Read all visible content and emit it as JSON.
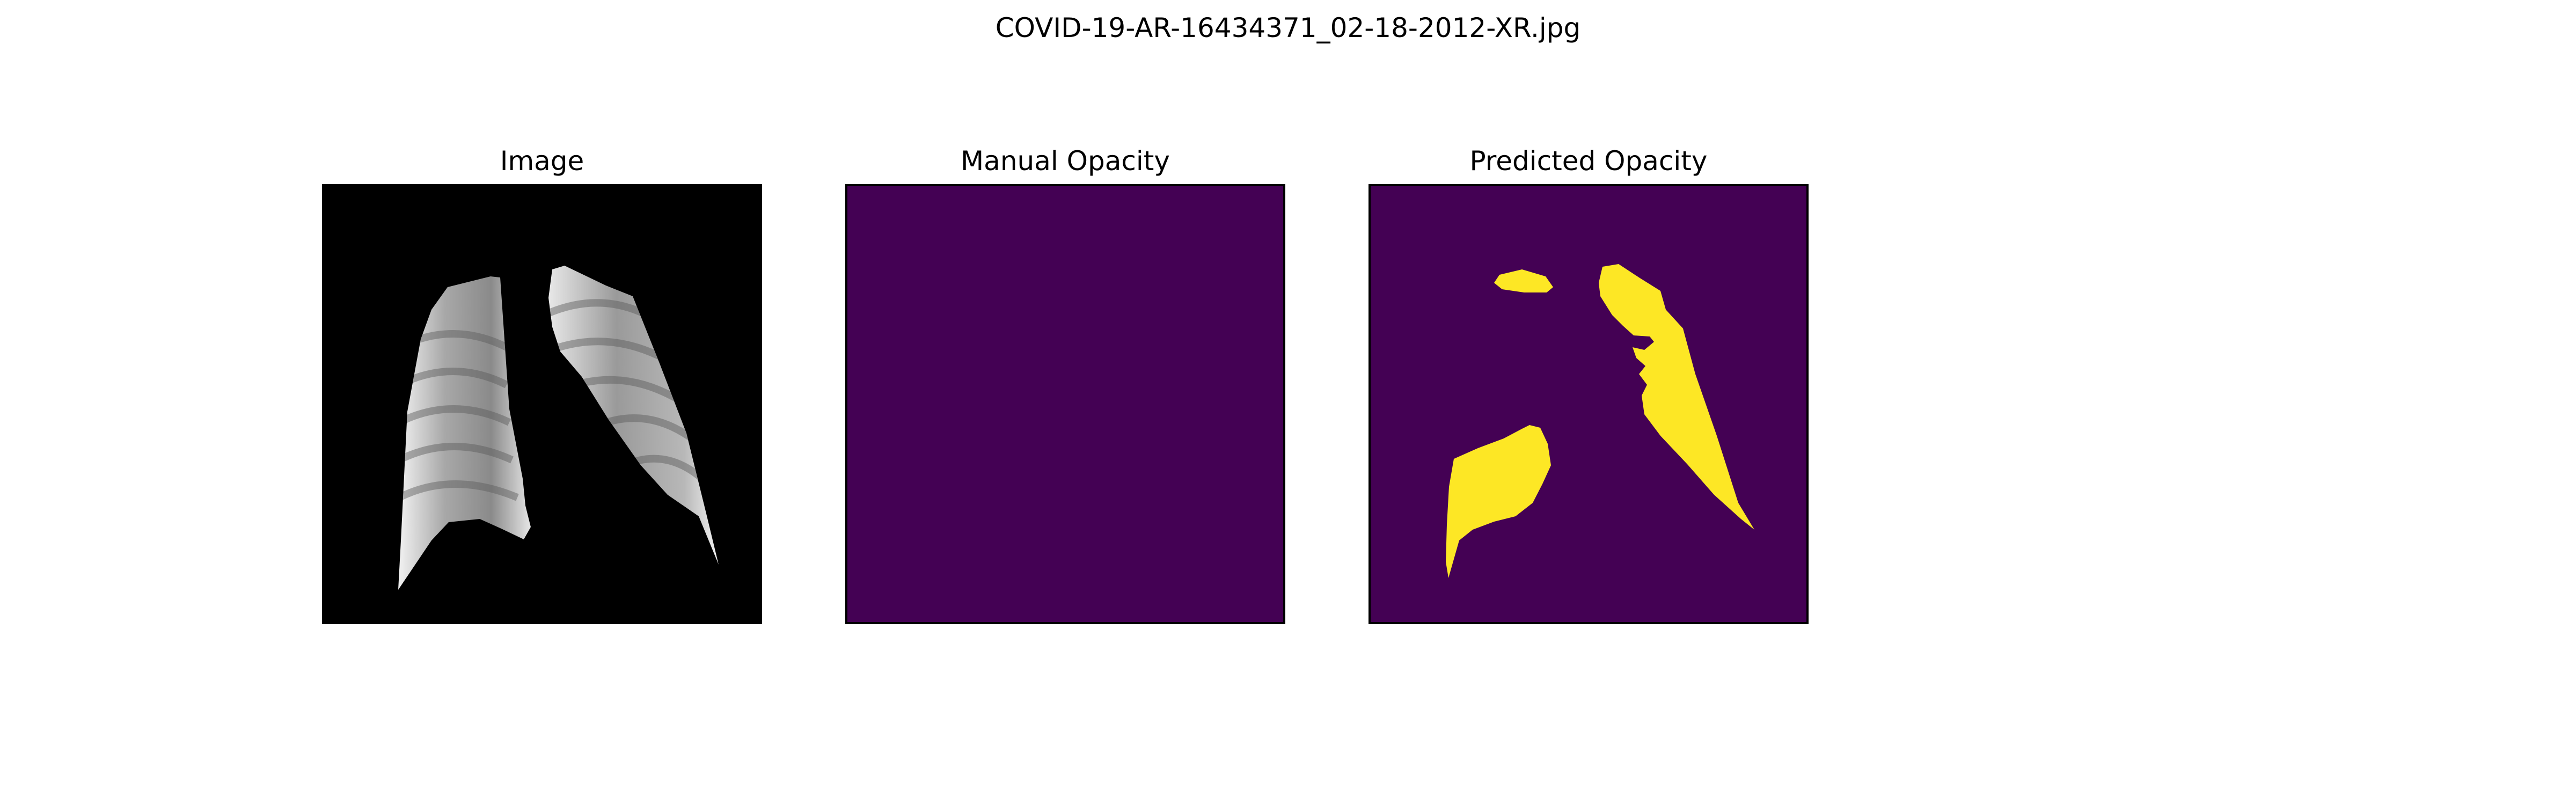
{
  "figure": {
    "suptitle": "COVID-19-AR-16434371_02-18-2012-XR.jpg"
  },
  "panels": [
    {
      "title": "Image",
      "background": "#000000"
    },
    {
      "title": "Manual Opacity",
      "background": "#440154"
    },
    {
      "title": "Predicted Opacity",
      "background": "#440154",
      "mask_color": "#fde725"
    }
  ]
}
